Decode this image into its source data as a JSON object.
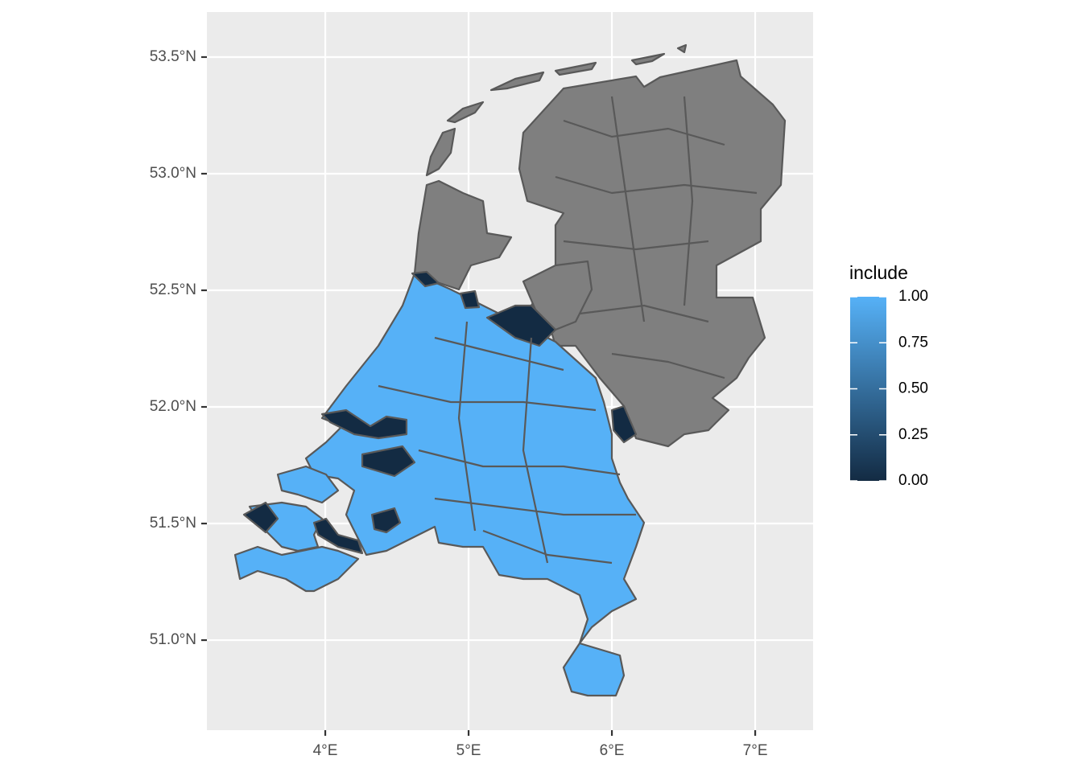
{
  "chart_data": {
    "type": "map",
    "xlim": [
      3.174,
      7.404
    ],
    "ylim": [
      50.614,
      53.693
    ],
    "xticks": [
      {
        "value": 4,
        "label": "4°E"
      },
      {
        "value": 5,
        "label": "5°E"
      },
      {
        "value": 6,
        "label": "6°E"
      },
      {
        "value": 7,
        "label": "7°E"
      }
    ],
    "yticks": [
      {
        "value": 51,
        "label": "51.0°N"
      },
      {
        "value": 51.5,
        "label": "51.5°N"
      },
      {
        "value": 52,
        "label": "52.0°N"
      },
      {
        "value": 52.5,
        "label": "52.5°N"
      },
      {
        "value": 53,
        "label": "53.0°N"
      },
      {
        "value": 53.5,
        "label": "53.5°N"
      }
    ],
    "grid": true,
    "legend": {
      "title": "include",
      "low_color": "#132B43",
      "high_color": "#56B1F7",
      "na_color": "#7F7F7F",
      "limits": [
        0,
        1
      ],
      "ticks": [
        {
          "value": 0,
          "label": "0.00"
        },
        {
          "value": 0.25,
          "label": "0.25"
        },
        {
          "value": 0.5,
          "label": "0.50"
        },
        {
          "value": 0.75,
          "label": "0.75"
        },
        {
          "value": 1,
          "label": "1.00"
        }
      ]
    }
  }
}
